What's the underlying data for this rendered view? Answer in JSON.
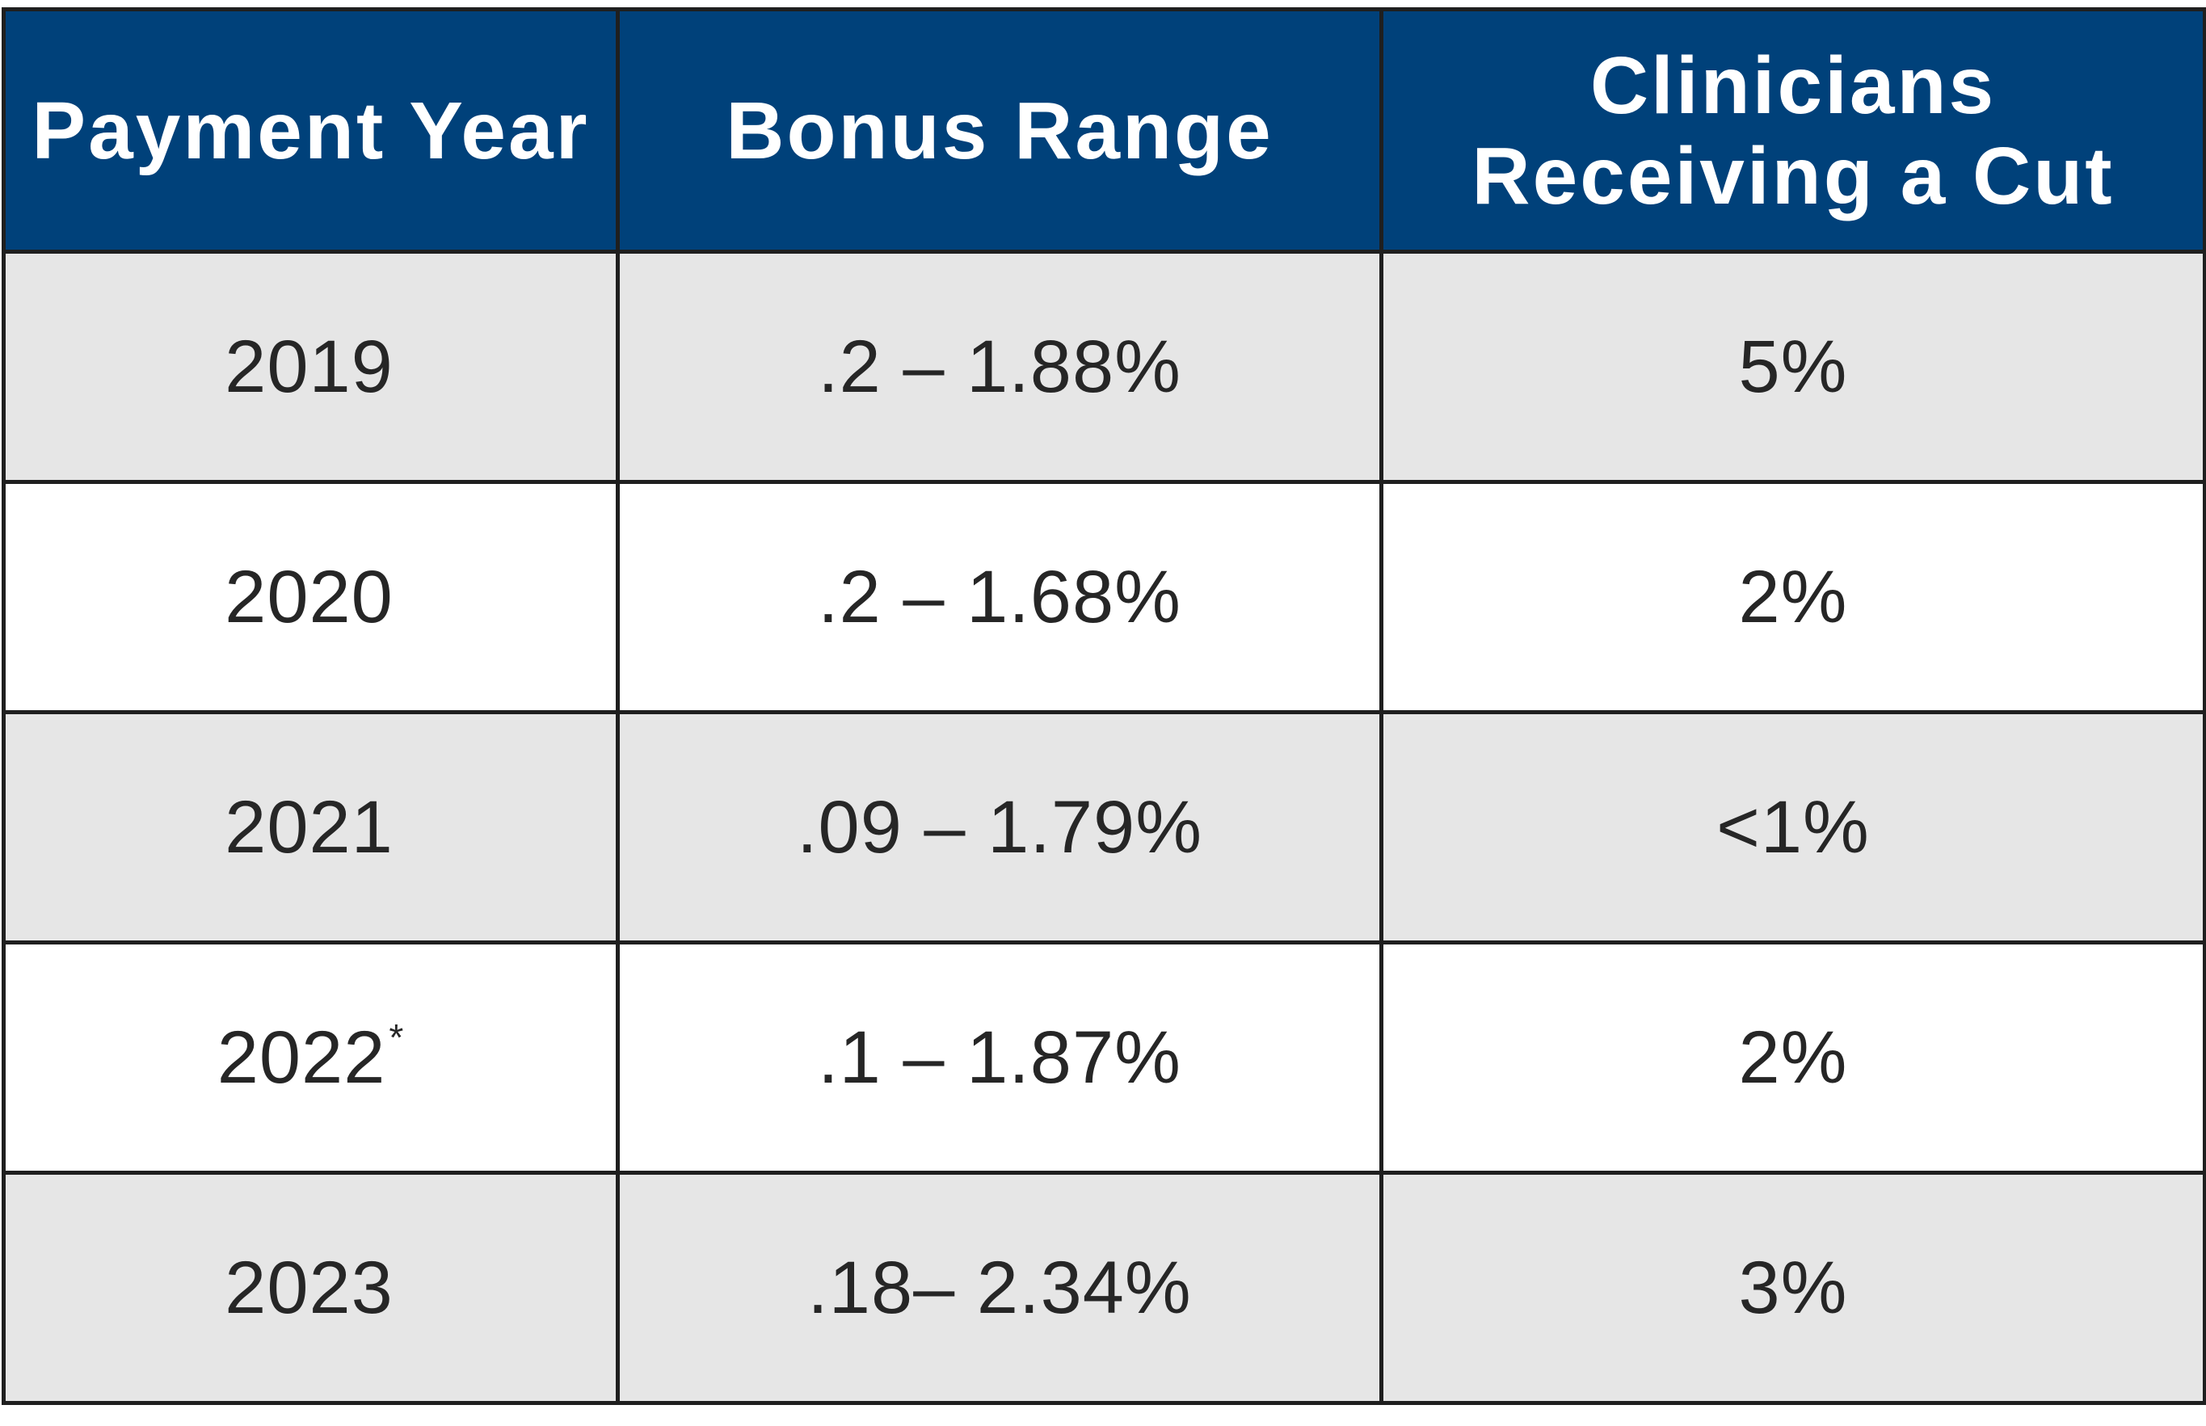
{
  "chart_data": {
    "type": "table",
    "columns": [
      "Payment Year",
      "Bonus Range",
      "Clinicians Receiving a Cut"
    ],
    "header_lines": [
      [
        "Payment Year"
      ],
      [
        "Bonus Range"
      ],
      [
        "Clinicians",
        "Receiving a Cut"
      ]
    ],
    "rows": [
      {
        "year": "2019",
        "year_mark": "",
        "bonus_range": ".2 – 1.88%",
        "cut": "5%"
      },
      {
        "year": "2020",
        "year_mark": "",
        "bonus_range": ".2 – 1.68%",
        "cut": "2%"
      },
      {
        "year": "2021",
        "year_mark": "",
        "bonus_range": ".09 – 1.79%",
        "cut": "<1%"
      },
      {
        "year": "2022",
        "year_mark": "*",
        "bonus_range": ".1 – 1.87%",
        "cut": "2%"
      },
      {
        "year": "2023",
        "year_mark": "",
        "bonus_range": ".18– 2.34%",
        "cut": "3%"
      }
    ]
  },
  "colors": {
    "header_background": "#00417a",
    "header_text": "#ffffff",
    "shaded_row": "#e6e6e6",
    "plain_row": "#ffffff",
    "border": "#1f1f1f",
    "body_text": "#262626"
  }
}
